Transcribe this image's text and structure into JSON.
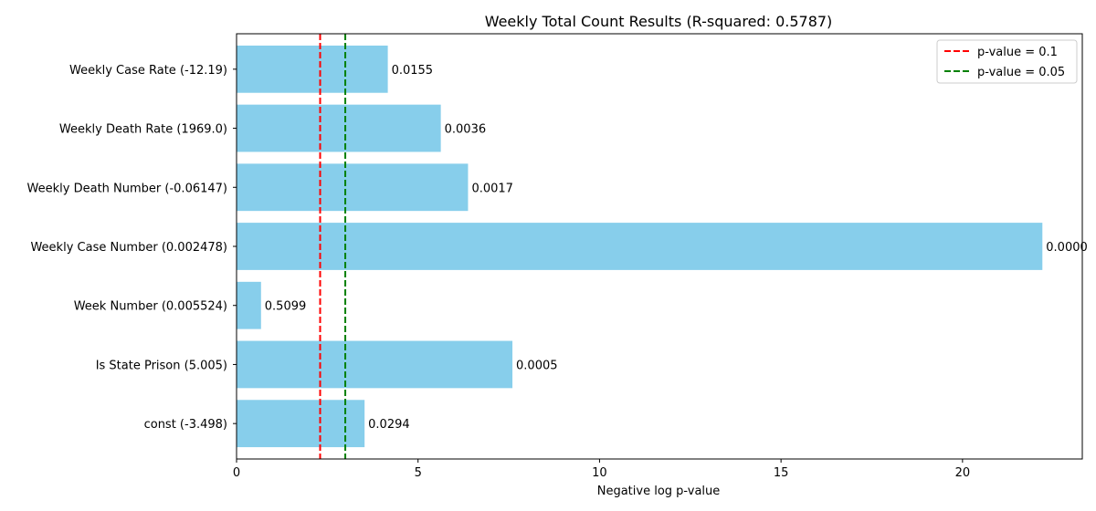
{
  "chart_data": {
    "type": "bar",
    "orientation": "horizontal",
    "title": "Weekly Total Count Results (R-squared: 0.5787)",
    "xlabel": "Negative log p-value",
    "ylabel": "",
    "xlim": [
      0,
      23.3
    ],
    "xticks": [
      0,
      5,
      10,
      15,
      20
    ],
    "xtick_labels": [
      "0",
      "5",
      "10",
      "15",
      "20"
    ],
    "categories": [
      "Weekly Case Rate (-12.19)",
      "Weekly Death Rate (1969.0)",
      "Weekly Death Number (-0.06147)",
      "Weekly Case Number (0.002478)",
      "Week Number (0.005524)",
      "Is State Prison (5.005)",
      "const (-3.498)"
    ],
    "values": [
      4.167,
      5.627,
      6.377,
      22.2,
      0.674,
      7.6,
      3.527
    ],
    "data_labels": [
      "0.0155",
      "0.0036",
      "0.0017",
      "0.0000",
      "0.5099",
      "0.0005",
      "0.0294"
    ],
    "bar_color": "#87ceeb",
    "reference_lines": [
      {
        "label": "p-value = 0.1",
        "x": 2.3026,
        "color": "#ff0000",
        "style": "dashed"
      },
      {
        "label": "p-value = 0.05",
        "x": 2.9957,
        "color": "#008000",
        "style": "dashed"
      }
    ],
    "legend_position": "top-right",
    "grid": false
  }
}
